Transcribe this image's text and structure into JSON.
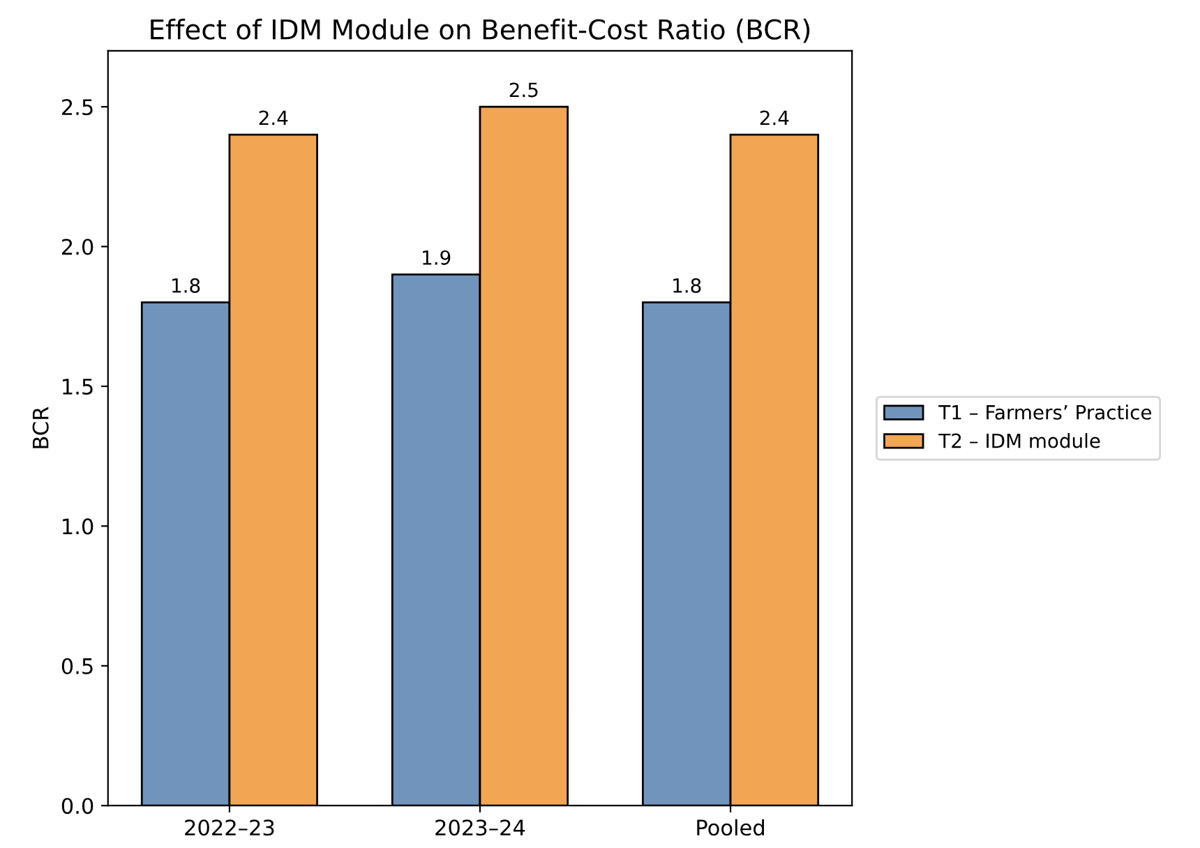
{
  "chart_data": {
    "type": "bar",
    "title": "Effect of IDM Module on Benefit-Cost Ratio (BCR)",
    "ylabel": "BCR",
    "categories": [
      "2022–23",
      "2023–24",
      "Pooled"
    ],
    "series": [
      {
        "name": "T1 – Farmers’ Practice",
        "color": "#7094bb",
        "values": [
          1.8,
          1.9,
          1.8
        ]
      },
      {
        "name": "T2 – IDM module",
        "color": "#f2a654",
        "values": [
          2.4,
          2.5,
          2.4
        ]
      }
    ],
    "ylim": [
      0,
      2.7
    ],
    "yticks": [
      {
        "value": 0,
        "label": "0.0"
      },
      {
        "value": 0.5,
        "label": "0.5"
      },
      {
        "value": 1.0,
        "label": "1.0"
      },
      {
        "value": 1.5,
        "label": "1.5"
      },
      {
        "value": 2.0,
        "label": "2.0"
      },
      {
        "value": 2.5,
        "label": "2.5"
      }
    ],
    "data_labels": true,
    "legend": "right",
    "grid": false
  }
}
